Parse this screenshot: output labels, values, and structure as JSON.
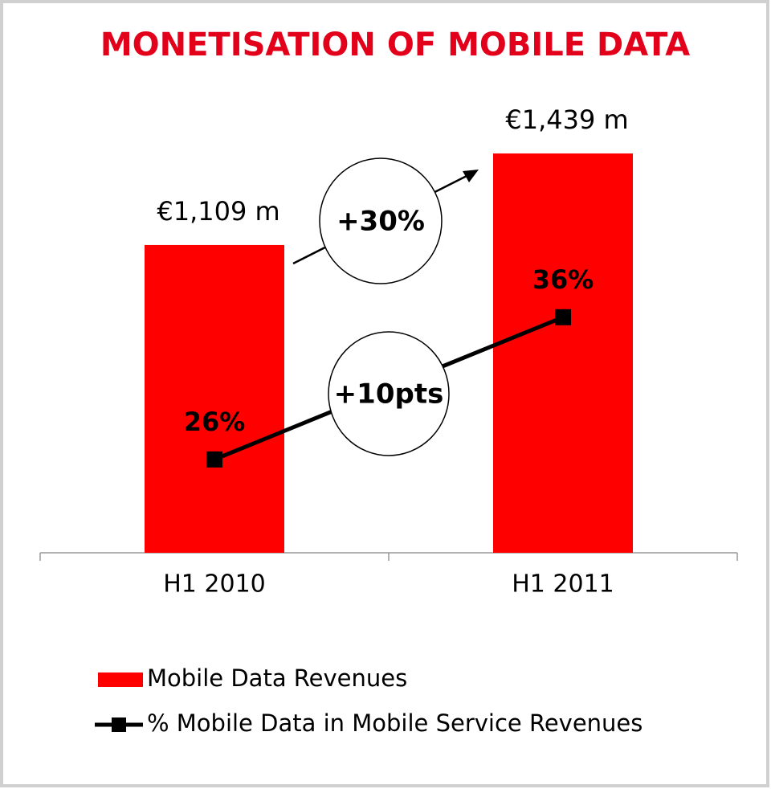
{
  "chart_data": {
    "type": "bar",
    "title": "MONETISATION OF MOBILE DATA",
    "categories": [
      "H1 2010",
      "H1 2011"
    ],
    "series": [
      {
        "name": "Mobile Data Revenues",
        "type": "bar",
        "color": "#ff0000",
        "values": [
          1109,
          1439
        ],
        "value_labels": [
          "€1,109 m",
          "€1,439 m"
        ]
      },
      {
        "name": "% Mobile Data in Mobile Service Revenues",
        "type": "line",
        "color": "#000000",
        "axis": "y2",
        "values": [
          26,
          36
        ],
        "value_labels": [
          "26%",
          "36%"
        ]
      }
    ],
    "annotations": [
      "+30%",
      "+10pts"
    ],
    "legend": "bottom"
  }
}
